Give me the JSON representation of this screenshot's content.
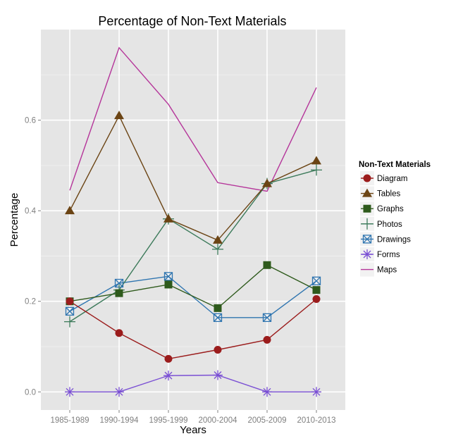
{
  "chart_data": {
    "type": "line",
    "title": "Percentage of Non-Text Materials",
    "xlabel": "Years",
    "ylabel": "Percentage",
    "categories": [
      "1985-1989",
      "1990-1994",
      "1995-1999",
      "2000-2004",
      "2005-2009",
      "2010-2013"
    ],
    "ylim": [
      -0.04,
      0.8
    ],
    "yticks": [
      0.0,
      0.2,
      0.4,
      0.6
    ],
    "ytick_labels": [
      "0.0",
      "0.2",
      "0.4",
      "0.6"
    ],
    "legend": {
      "title": "Non-Text Materials",
      "placement": "right"
    },
    "grid": true,
    "series": [
      {
        "name": "Diagram",
        "marker": "circle",
        "color": "#9b1c1c",
        "values": [
          0.2,
          0.13,
          0.073,
          0.093,
          0.115,
          0.205
        ]
      },
      {
        "name": "Tables",
        "marker": "triangle",
        "color": "#6b4414",
        "values": [
          0.4,
          0.61,
          0.382,
          0.335,
          0.46,
          0.51
        ]
      },
      {
        "name": "Graphs",
        "marker": "square",
        "color": "#2e5a1c",
        "values": [
          0.2,
          0.218,
          0.237,
          0.185,
          0.28,
          0.225
        ]
      },
      {
        "name": "Photos",
        "marker": "plus",
        "color": "#3c7a5a",
        "values": [
          0.155,
          0.225,
          0.382,
          0.315,
          0.46,
          0.49
        ]
      },
      {
        "name": "Drawings",
        "marker": "boxx",
        "color": "#2f75b0",
        "values": [
          0.178,
          0.24,
          0.255,
          0.164,
          0.164,
          0.245
        ]
      },
      {
        "name": "Forms",
        "marker": "star",
        "color": "#7a4fd4",
        "values": [
          0.0,
          0.0,
          0.036,
          0.037,
          0.0,
          0.0
        ]
      },
      {
        "name": "Maps",
        "marker": "none",
        "color": "#b5359a",
        "values": [
          0.445,
          0.76,
          0.635,
          0.462,
          0.443,
          0.672
        ]
      }
    ]
  }
}
